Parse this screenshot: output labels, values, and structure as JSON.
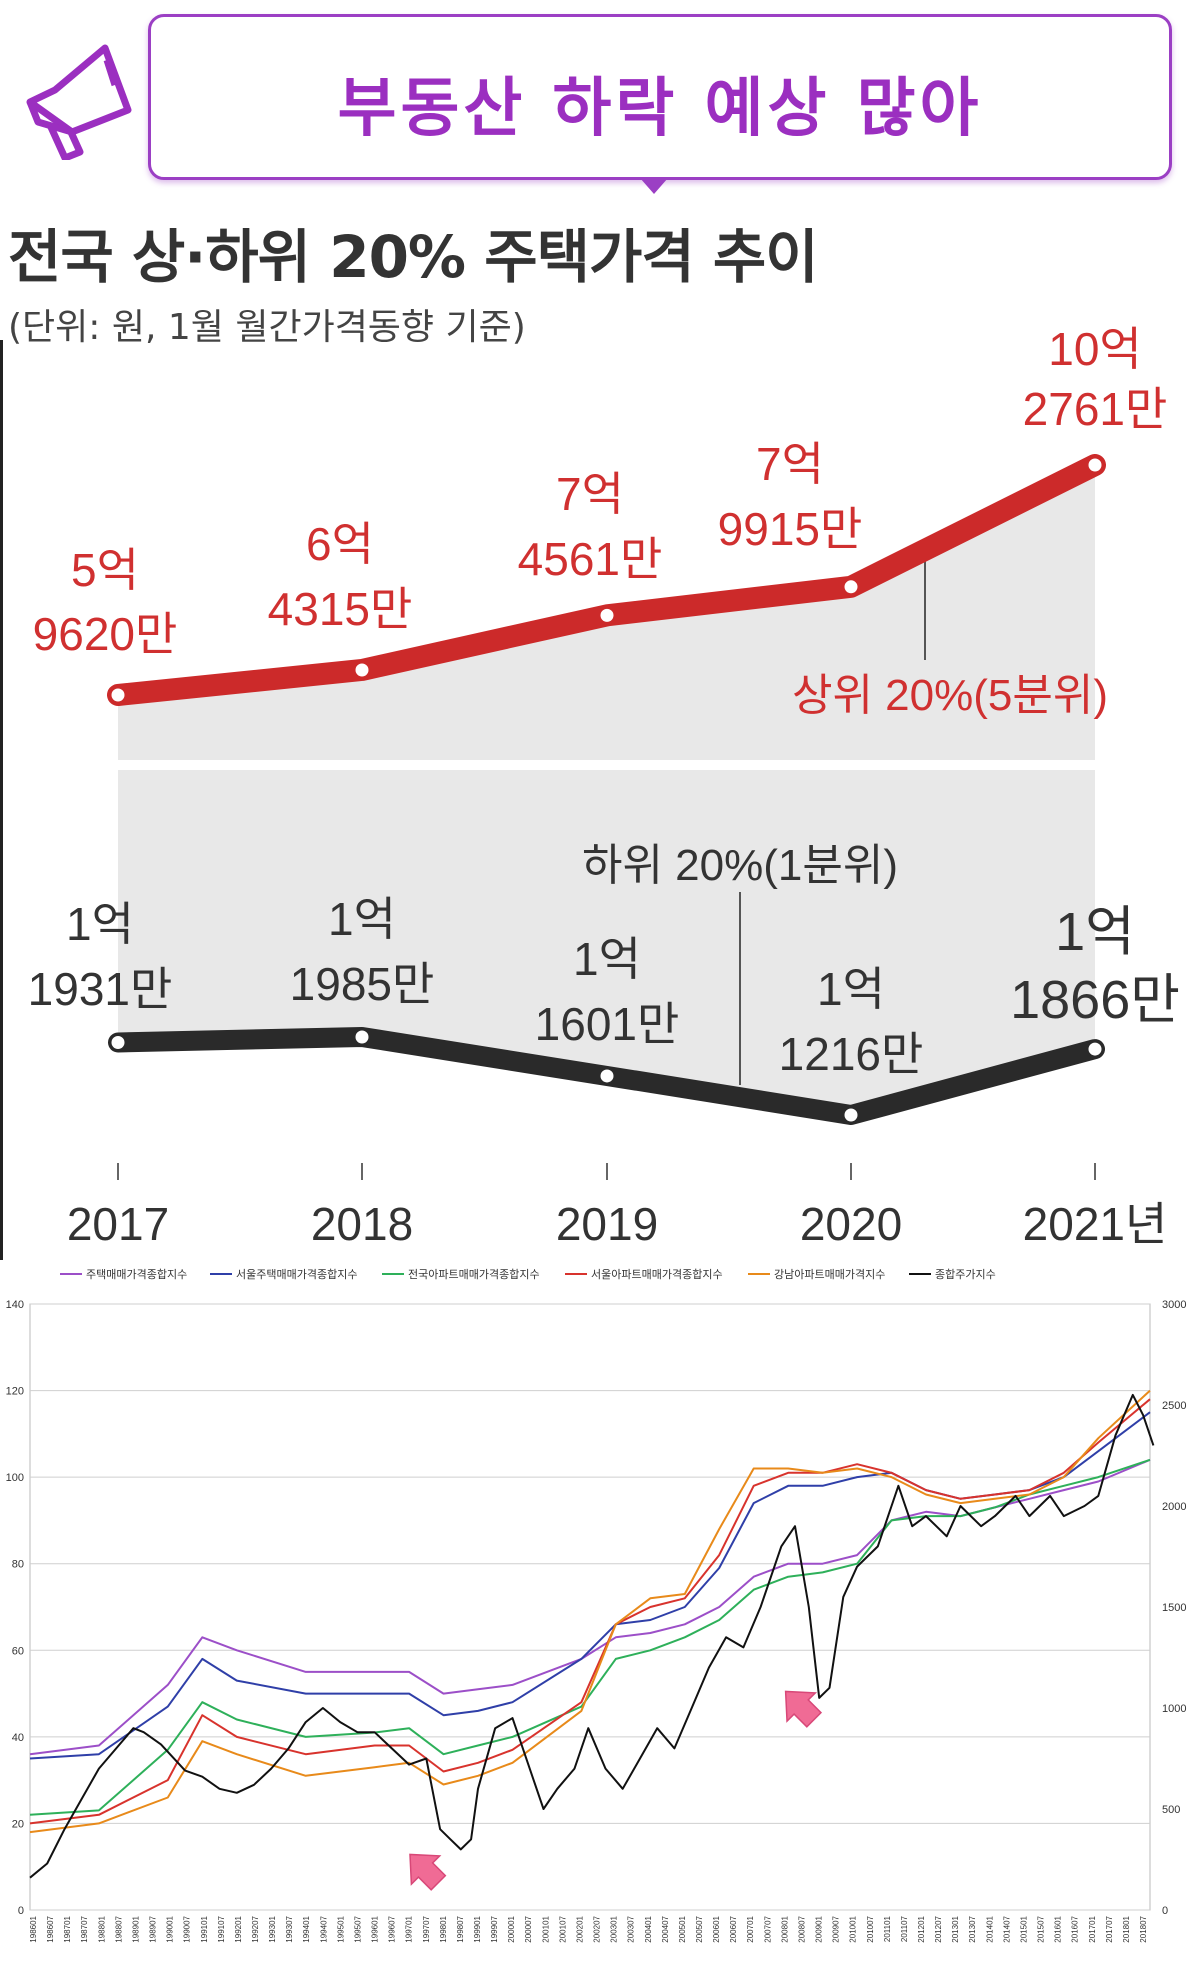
{
  "banner": {
    "text": "부동산 하락 예상 많아",
    "icon": "megaphone-icon"
  },
  "colors": {
    "banner": "#9b2fc0",
    "upper": "#cc2a2a",
    "lower": "#2a2a2a",
    "band": "#e8e8e8"
  },
  "chart_data": [
    {
      "type": "line",
      "title": "전국 상·하위 20% 주택가격 추이",
      "subtitle": "(단위: 원, 1월 월간가격동향 기준)",
      "categories": [
        "2017",
        "2018",
        "2019",
        "2020",
        "2021년"
      ],
      "series": [
        {
          "name": "상위 20%(5분위)",
          "values": [
            596200000,
            643150000,
            745610000,
            799150000,
            1027610000
          ],
          "labels": [
            [
              "5억",
              "9620만"
            ],
            [
              "6억",
              "4315만"
            ],
            [
              "7억",
              "4561만"
            ],
            [
              "7억",
              "9915만"
            ],
            [
              "10억",
              "2761만"
            ]
          ]
        },
        {
          "name": "하위 20%(1분위)",
          "values": [
            119310000,
            119850000,
            116010000,
            112160000,
            118660000
          ],
          "labels": [
            [
              "1억",
              "1931만"
            ],
            [
              "1억",
              "1985만"
            ],
            [
              "1억",
              "1601만"
            ],
            [
              "1억",
              "1216만"
            ],
            [
              "1억",
              "1866만"
            ]
          ]
        }
      ]
    },
    {
      "type": "line",
      "legend": [
        "주택매매가격종합지수",
        "서울주택매매가격종합지수",
        "전국아파트매매가격종합지수",
        "서울아파트매매가격종합지수",
        "강남아파트매매가격지수",
        "종합주가지수"
      ],
      "legend_colors": [
        "#9c4fc8",
        "#2f3fa8",
        "#2eb05a",
        "#d8332d",
        "#e88a1a",
        "#111111"
      ],
      "y_left": {
        "min": 0,
        "max": 140,
        "ticks": [
          "0",
          "20",
          "40",
          "60",
          "80",
          "100",
          "120",
          "140"
        ]
      },
      "y_right": {
        "min": 0,
        "max": 3000,
        "ticks": [
          "0",
          "500",
          "1000",
          "1500",
          "2000",
          "2500",
          "3000"
        ]
      },
      "x_range": [
        "198601",
        "201807"
      ],
      "x_ticks": [
        "198601",
        "198607",
        "198701",
        "198707",
        "198801",
        "198807",
        "198901",
        "198907",
        "199001",
        "199007",
        "199101",
        "199107",
        "199201",
        "199207",
        "199301",
        "199307",
        "199401",
        "199407",
        "199501",
        "199507",
        "199601",
        "199607",
        "199701",
        "199707",
        "199801",
        "199807",
        "199901",
        "199907",
        "200001",
        "200007",
        "200101",
        "200107",
        "200201",
        "200207",
        "200301",
        "200307",
        "200401",
        "200407",
        "200501",
        "200507",
        "200601",
        "200607",
        "200701",
        "200707",
        "200801",
        "200807",
        "200901",
        "200907",
        "201001",
        "201007",
        "201101",
        "201107",
        "201201",
        "201207",
        "201301",
        "201307",
        "201401",
        "201407",
        "201501",
        "201507",
        "201601",
        "201607",
        "201701",
        "201707",
        "201801",
        "201807"
      ],
      "grid": "horizontal",
      "legend_position": "top",
      "series": [
        {
          "name": "주택매매가격종합지수",
          "x": [
            1986,
            1988,
            1990,
            1991,
            1992,
            1994,
            1996,
            1997,
            1998,
            1999,
            2000,
            2002,
            2003,
            2004,
            2005,
            2006,
            2007,
            2008,
            2009,
            2010,
            2011,
            2012,
            2013,
            2014,
            2015,
            2016,
            2017,
            2018.5
          ],
          "values": [
            36,
            38,
            52,
            63,
            60,
            55,
            55,
            55,
            50,
            51,
            52,
            58,
            63,
            64,
            66,
            70,
            77,
            80,
            80,
            82,
            90,
            92,
            91,
            93,
            95,
            97,
            99,
            104
          ]
        },
        {
          "name": "서울주택매매가격종합지수",
          "x": [
            1986,
            1988,
            1990,
            1991,
            1992,
            1994,
            1996,
            1997,
            1998,
            1999,
            2000,
            2002,
            2003,
            2004,
            2005,
            2006,
            2007,
            2008,
            2009,
            2010,
            2011,
            2012,
            2013,
            2014,
            2015,
            2016,
            2017,
            2018.5
          ],
          "values": [
            35,
            36,
            47,
            58,
            53,
            50,
            50,
            50,
            45,
            46,
            48,
            58,
            66,
            67,
            70,
            79,
            94,
            98,
            98,
            100,
            101,
            97,
            95,
            96,
            97,
            100,
            106,
            115
          ]
        },
        {
          "name": "전국아파트매매가격종합지수",
          "x": [
            1986,
            1988,
            1990,
            1991,
            1992,
            1994,
            1996,
            1997,
            1998,
            1999,
            2000,
            2002,
            2003,
            2004,
            2005,
            2006,
            2007,
            2008,
            2009,
            2010,
            2011,
            2012,
            2013,
            2014,
            2015,
            2016,
            2017,
            2018.5
          ],
          "values": [
            22,
            23,
            37,
            48,
            44,
            40,
            41,
            42,
            36,
            38,
            40,
            47,
            58,
            60,
            63,
            67,
            74,
            77,
            78,
            80,
            90,
            91,
            91,
            93,
            96,
            98,
            100,
            104
          ]
        },
        {
          "name": "서울아파트매매가격종합지수",
          "x": [
            1986,
            1988,
            1990,
            1991,
            1992,
            1994,
            1996,
            1997,
            1998,
            1999,
            2000,
            2002,
            2003,
            2004,
            2005,
            2006,
            2007,
            2008,
            2009,
            2010,
            2011,
            2012,
            2013,
            2014,
            2015,
            2016,
            2017,
            2018.5
          ],
          "values": [
            20,
            22,
            30,
            45,
            40,
            36,
            38,
            38,
            32,
            34,
            37,
            48,
            66,
            70,
            72,
            82,
            98,
            101,
            101,
            103,
            101,
            97,
            95,
            96,
            97,
            101,
            108,
            118
          ]
        },
        {
          "name": "강남아파트매매가격지수",
          "x": [
            1986,
            1988,
            1990,
            1991,
            1992,
            1994,
            1996,
            1997,
            1998,
            1999,
            2000,
            2002,
            2003,
            2004,
            2005,
            2006,
            2007,
            2008,
            2009,
            2010,
            2011,
            2012,
            2013,
            2014,
            2015,
            2016,
            2017,
            2018.5
          ],
          "values": [
            18,
            20,
            26,
            39,
            36,
            31,
            33,
            34,
            29,
            31,
            34,
            46,
            66,
            72,
            73,
            88,
            102,
            102,
            101,
            102,
            100,
            96,
            94,
            95,
            96,
            100,
            109,
            120
          ]
        },
        {
          "name": "종합주가지수",
          "axis": "right",
          "x": [
            1986,
            1986.5,
            1987,
            1987.5,
            1988,
            1988.5,
            1989,
            1989.3,
            1989.8,
            1990.5,
            1991,
            1991.5,
            1992,
            1992.5,
            1993,
            1993.5,
            1994,
            1994.5,
            1995,
            1995.5,
            1996,
            1996.5,
            1997,
            1997.5,
            1997.9,
            1998.2,
            1998.5,
            1998.8,
            1999,
            1999.5,
            2000,
            2000.5,
            2000.9,
            2001.3,
            2001.8,
            2002.2,
            2002.7,
            2003.2,
            2003.7,
            2004.2,
            2004.7,
            2005.2,
            2005.7,
            2006.2,
            2006.7,
            2007.2,
            2007.8,
            2008.2,
            2008.6,
            2008.9,
            2009.2,
            2009.6,
            2010,
            2010.6,
            2011.2,
            2011.6,
            2012,
            2012.6,
            2013,
            2013.6,
            2014,
            2014.6,
            2015,
            2015.6,
            2016,
            2016.6,
            2017,
            2017.5,
            2018,
            2018.3,
            2018.6
          ],
          "values": [
            160,
            230,
            400,
            550,
            700,
            800,
            900,
            880,
            820,
            690,
            660,
            600,
            580,
            620,
            700,
            800,
            930,
            1000,
            930,
            880,
            880,
            800,
            720,
            750,
            400,
            350,
            300,
            350,
            600,
            900,
            950,
            700,
            500,
            600,
            700,
            900,
            700,
            600,
            750,
            900,
            800,
            1000,
            1200,
            1350,
            1300,
            1500,
            1800,
            1900,
            1500,
            1050,
            1100,
            1550,
            1700,
            1800,
            2100,
            1900,
            1950,
            1850,
            2000,
            1900,
            1950,
            2050,
            1950,
            2050,
            1950,
            2000,
            2050,
            2350,
            2550,
            2450,
            2300
          ]
        }
      ],
      "markers": [
        {
          "x": 1998,
          "note": "arrow-icon"
        },
        {
          "x": 2008.9,
          "note": "arrow-icon"
        }
      ]
    }
  ]
}
